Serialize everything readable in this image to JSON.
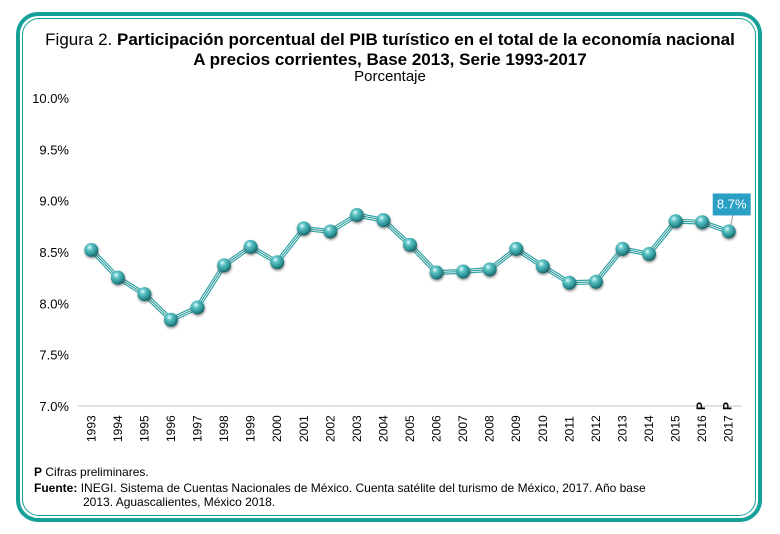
{
  "figure": {
    "prefix": "Figura 2.",
    "title": "Participación porcentual del PIB turístico en el total de la economía nacional",
    "title_line2": "A precios corrientes, Base 2013, Serie 1993-2017",
    "subtitle": "Porcentaje"
  },
  "colors": {
    "frame": "#16a09a",
    "series": "#2fa4a4",
    "marker": "#4fb8bc",
    "callout": "#2aa0c4"
  },
  "chart_data": {
    "type": "line",
    "title": "Participación porcentual del PIB turístico en el total de la economía nacional",
    "subtitle": "A precios corrientes, Base 2013, Serie 1993-2017",
    "ylabel": "Porcentaje",
    "xlabel": "",
    "ylim": [
      7.0,
      10.0
    ],
    "yticks": [
      7.0,
      7.5,
      8.0,
      8.5,
      9.0,
      9.5,
      10.0
    ],
    "ytick_labels": [
      "7.0%",
      "7.5%",
      "8.0%",
      "8.5%",
      "9.0%",
      "9.5%",
      "10.0%"
    ],
    "grid": false,
    "legend": "none",
    "categories": [
      "1993",
      "1994",
      "1995",
      "1996",
      "1997",
      "1998",
      "1999",
      "2000",
      "2001",
      "2002",
      "2003",
      "2004",
      "2005",
      "2006",
      "2007",
      "2008",
      "2009",
      "2010",
      "2011",
      "2012",
      "2013",
      "2014",
      "2015",
      "2016",
      "2017"
    ],
    "category_superscripts": {
      "2016": "P",
      "2017": "P"
    },
    "series": [
      {
        "name": "PIB turístico",
        "values": [
          8.52,
          8.25,
          8.09,
          7.84,
          7.96,
          8.37,
          8.55,
          8.4,
          8.73,
          8.7,
          8.86,
          8.81,
          8.57,
          8.3,
          8.31,
          8.33,
          8.53,
          8.36,
          8.2,
          8.21,
          8.53,
          8.48,
          8.8,
          8.79,
          8.7
        ]
      }
    ],
    "annotations": [
      {
        "category": "2017",
        "text": "8.7%"
      }
    ]
  },
  "notes": {
    "p_label": "P",
    "p_text": "Cifras preliminares.",
    "source_label": "Fuente:",
    "source_text": "INEGI. Sistema de Cuentas Nacionales de México. Cuenta satélite del turismo de México, 2017. Año base",
    "source_text2": "2013. Aguascalientes, México 2018."
  }
}
